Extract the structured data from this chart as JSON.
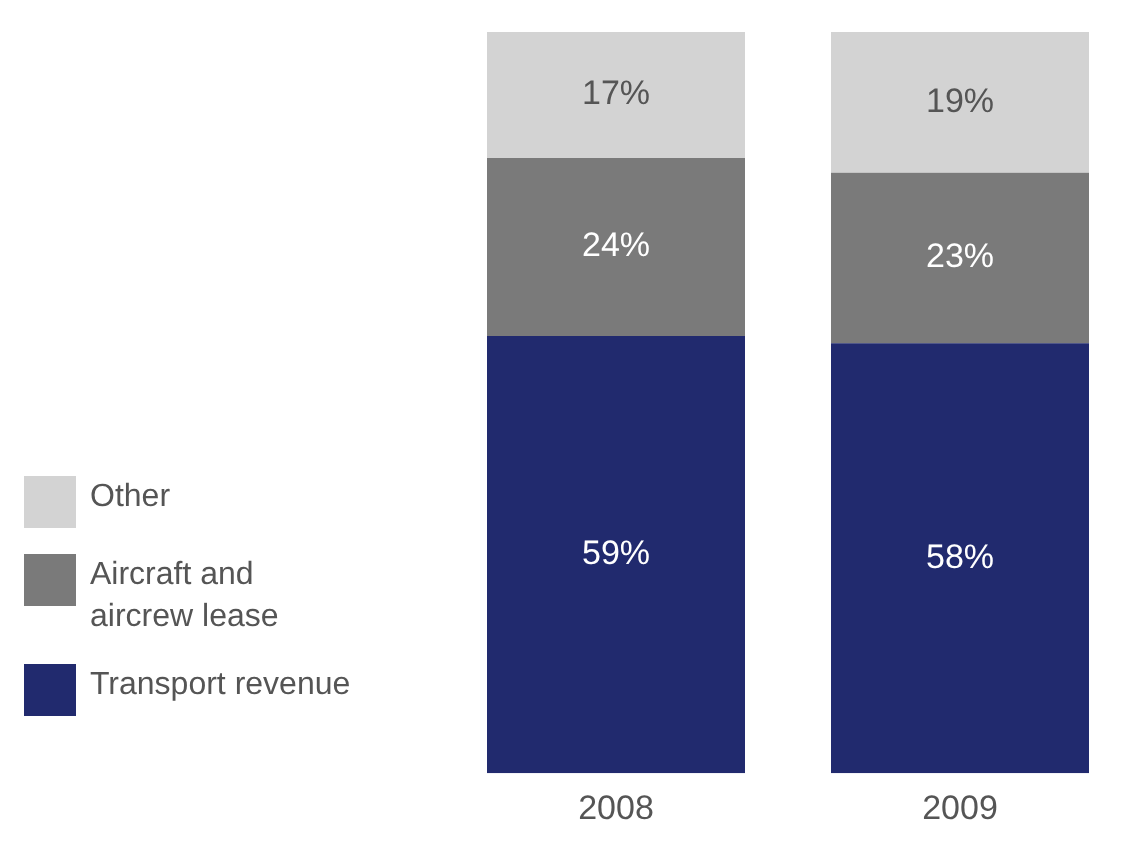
{
  "chart_data": {
    "type": "bar",
    "stacked": true,
    "categories": [
      "2008",
      "2009"
    ],
    "tick_labels": "x",
    "grid": false,
    "legend": "left",
    "series": [
      {
        "name": "Transport revenue",
        "color": "#212a6e",
        "values": [
          59,
          58
        ],
        "value_labels": [
          "59%",
          "58%"
        ]
      },
      {
        "name": "Aircraft and aircrew lease",
        "color": "#7a7a7a",
        "values": [
          24,
          23
        ],
        "value_labels": [
          "24%",
          "23%"
        ]
      },
      {
        "name": "Other",
        "color": "#d3d3d3",
        "values": [
          17,
          19
        ],
        "value_labels": [
          "17%",
          "19%"
        ]
      }
    ]
  }
}
